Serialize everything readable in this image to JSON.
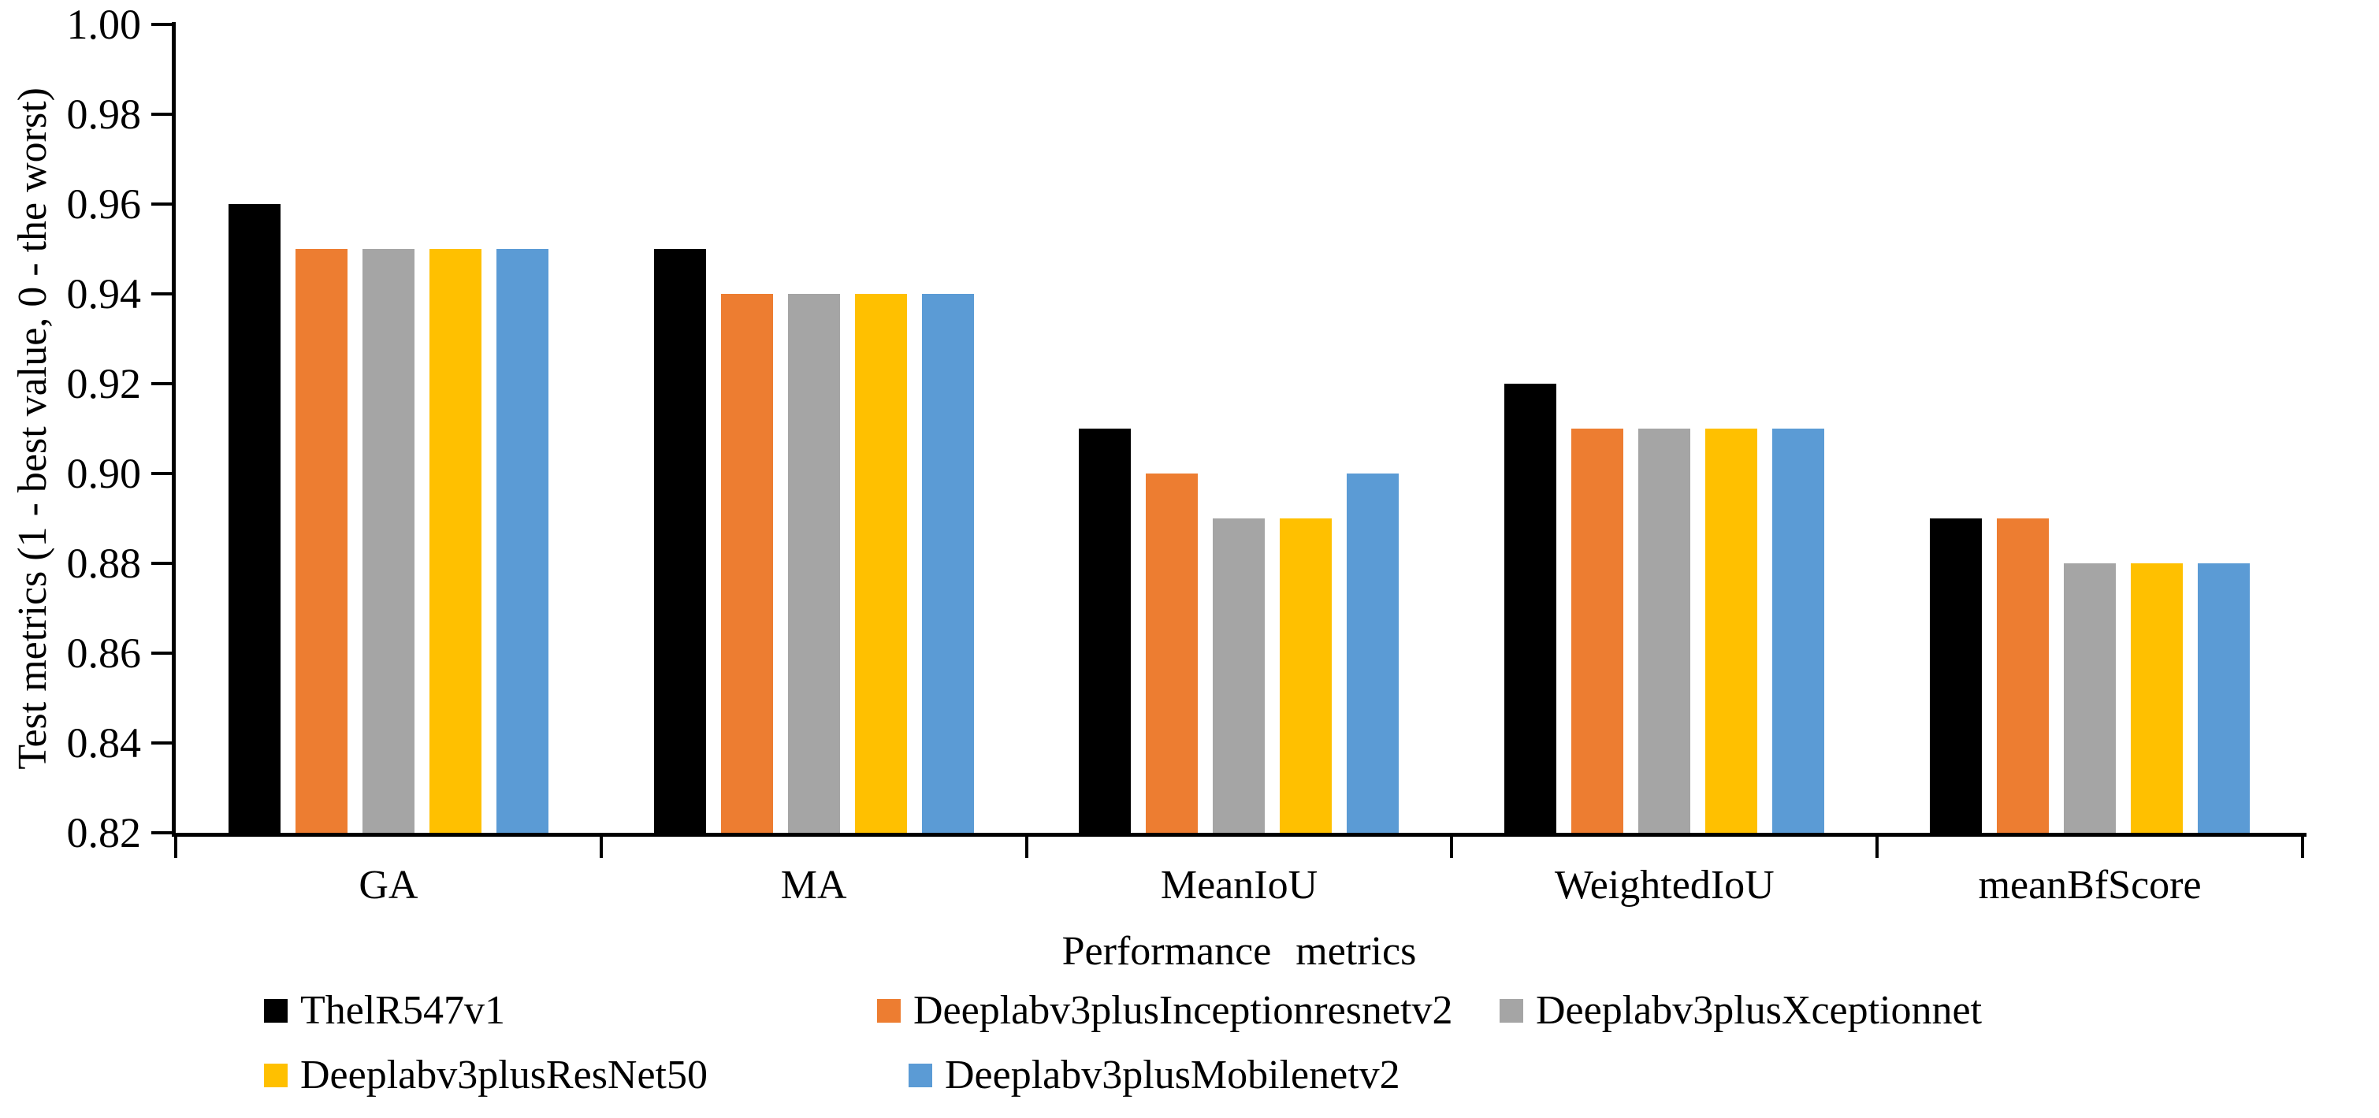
{
  "figure": {
    "background": "#ffffff",
    "text_color": "#000000",
    "axis_color": "#000000"
  },
  "chart_data": {
    "type": "bar",
    "title": "",
    "xlabel": "Performance metrics",
    "ylabel": "Test metrics (1 - best value, 0 - the worst)",
    "ylim": [
      0.82,
      1.0
    ],
    "ytick_step": 0.02,
    "ytick_decimals": 2,
    "grid": false,
    "legend_position": "bottom",
    "categories": [
      "GA",
      "MA",
      "MeanIoU",
      "WeightedIoU",
      "meanBfScore"
    ],
    "series": [
      {
        "name": "ThelR547v1",
        "color": "#000000",
        "values": [
          0.96,
          0.95,
          0.91,
          0.92,
          0.89
        ]
      },
      {
        "name": "Deeplabv3plusInceptionresnetv2",
        "color": "#ED7D31",
        "values": [
          0.95,
          0.94,
          0.9,
          0.91,
          0.89
        ]
      },
      {
        "name": "Deeplabv3plusXceptionnet",
        "color": "#A5A5A5",
        "values": [
          0.95,
          0.94,
          0.89,
          0.91,
          0.88
        ]
      },
      {
        "name": "Deeplabv3plusResNet50",
        "color": "#FFC000",
        "values": [
          0.95,
          0.94,
          0.89,
          0.91,
          0.88
        ]
      },
      {
        "name": "Deeplabv3plusMobilenetv2",
        "color": "#5B9BD5",
        "values": [
          0.95,
          0.94,
          0.9,
          0.91,
          0.88
        ]
      }
    ]
  }
}
